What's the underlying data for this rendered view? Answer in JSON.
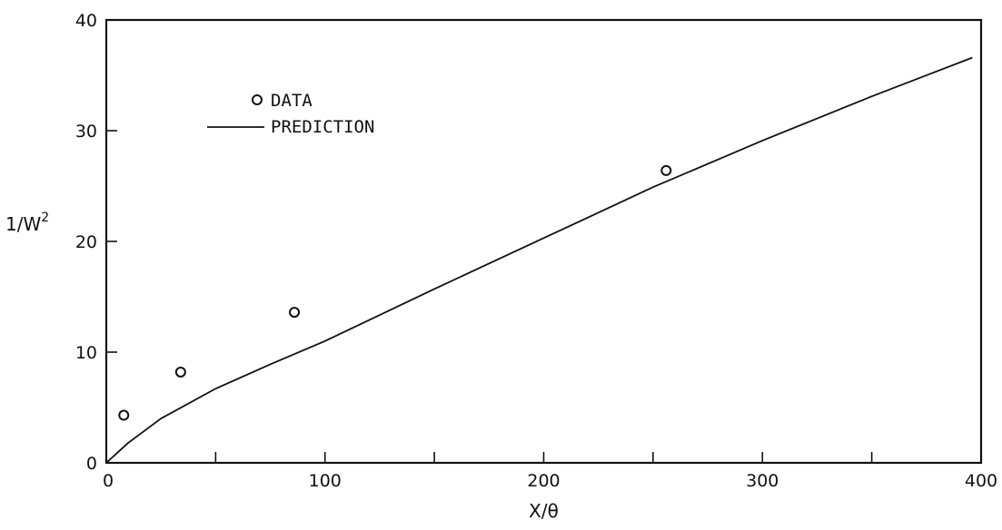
{
  "chart_data": {
    "type": "scatter",
    "xlabel": "X/θ",
    "ylabel": "1/W",
    "ylabel_superscript": "2",
    "xlim": [
      0,
      400
    ],
    "ylim": [
      0,
      40
    ],
    "x_ticks": [
      0,
      100,
      200,
      300,
      400
    ],
    "x_minor_ticks": [
      50,
      150,
      250,
      350
    ],
    "y_ticks": [
      0,
      10,
      20,
      30,
      40
    ],
    "grid": false,
    "legend_position": "top-left",
    "series": [
      {
        "name": "DATA",
        "kind": "points",
        "marker": "open-circle",
        "x": [
          8,
          34,
          86,
          256
        ],
        "y": [
          4.3,
          8.2,
          13.6,
          26.4
        ]
      },
      {
        "name": "PREDICTION",
        "kind": "line",
        "x": [
          0,
          10,
          25,
          50,
          75,
          100,
          150,
          200,
          250,
          300,
          350,
          396
        ],
        "y": [
          0,
          1.8,
          4.0,
          6.7,
          8.9,
          11.0,
          15.7,
          20.3,
          24.9,
          29.1,
          33.1,
          36.6
        ]
      }
    ]
  }
}
